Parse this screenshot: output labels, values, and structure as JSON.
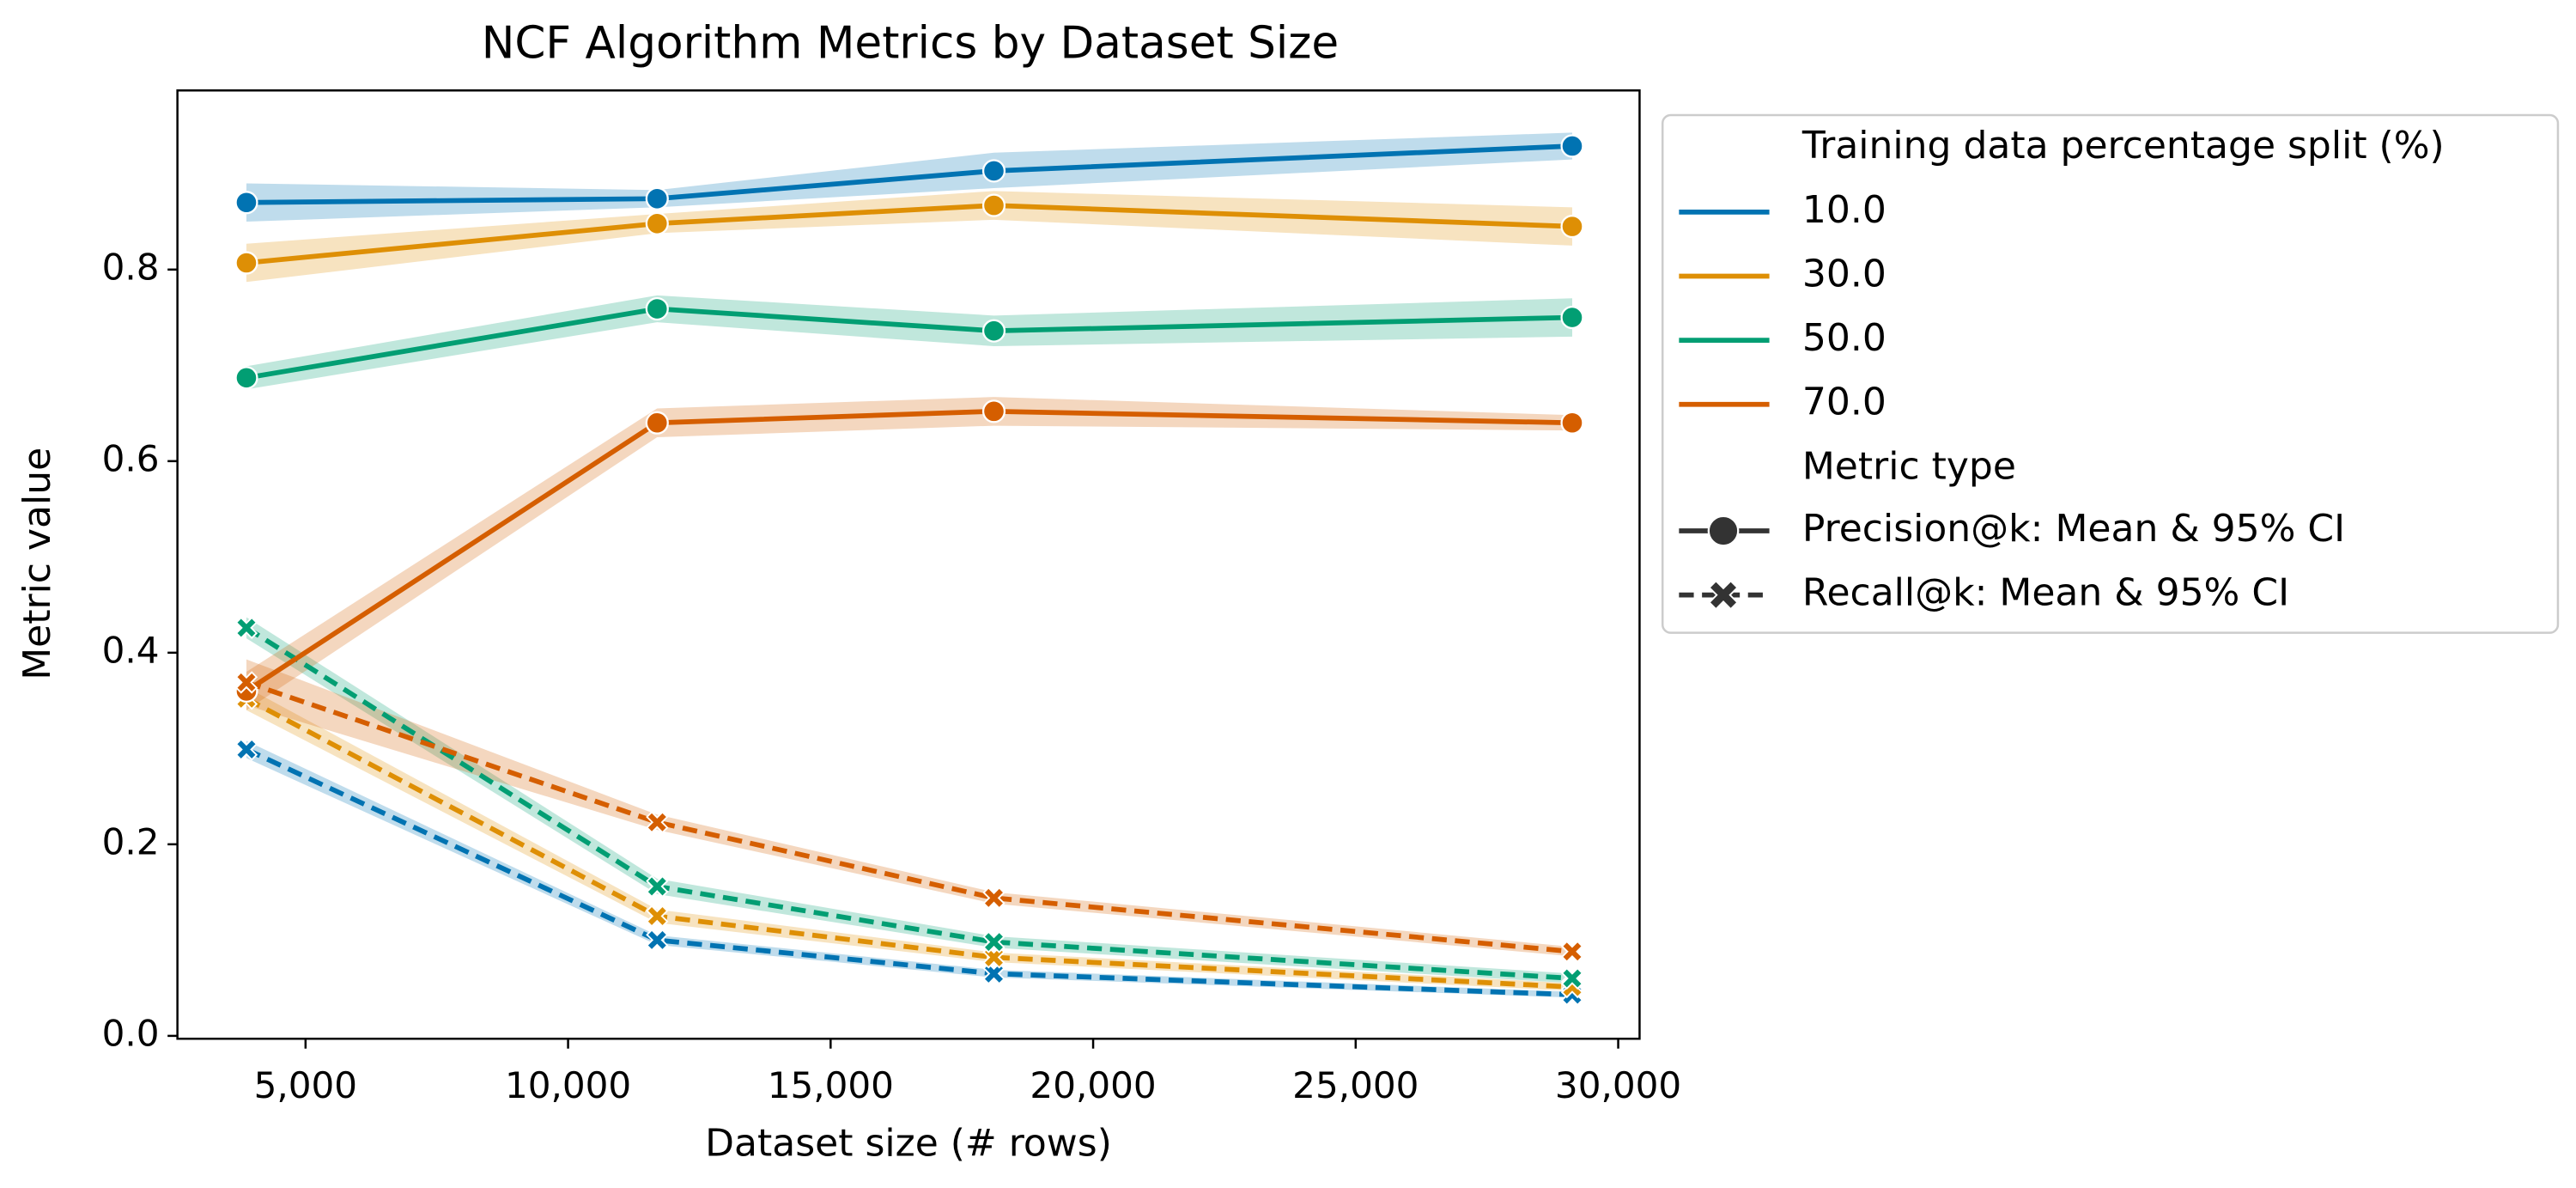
{
  "chart_data": {
    "type": "line",
    "title": "NCF Algorithm Metrics by Dataset Size",
    "xlabel": "Dataset size (# rows)",
    "ylabel": "Metric value",
    "x": [
      3874,
      11696,
      18110,
      29124
    ],
    "xlim": [
      2560,
      30407
    ],
    "xticks": [
      {
        "value": 5000,
        "label": "5,000"
      },
      {
        "value": 10000,
        "label": "10,000"
      },
      {
        "value": 15000,
        "label": "15,000"
      },
      {
        "value": 20000,
        "label": "20,000"
      },
      {
        "value": 25000,
        "label": "25,000"
      },
      {
        "value": 30000,
        "label": "30,000"
      }
    ],
    "ylim": [
      -0.003,
      0.987
    ],
    "yticks": [
      {
        "value": 0,
        "label": "0.0"
      },
      0.2,
      0.4,
      0.6,
      0.8
    ],
    "legend_title": "Training data percentage split (%)",
    "metric_title": "Metric type",
    "metric_types": [
      {
        "name": "Precision@k: Mean & 95% CI",
        "marker": "circle",
        "dash": "solid"
      },
      {
        "name": "Recall@k: Mean & 95% CI",
        "marker": "x",
        "dash": "dashed"
      }
    ],
    "series": [
      {
        "name": "10.0",
        "color": "#0173b2",
        "metrics": [
          {
            "values": [
              0.87,
              0.874,
              0.903,
              0.929
            ],
            "ci_lower": [
              0.85,
              0.865,
              0.885,
              0.915
            ],
            "ci_upper": [
              0.89,
              0.883,
              0.922,
              0.943
            ]
          },
          {
            "values": [
              0.299,
              0.1,
              0.065,
              0.043
            ],
            "ci_lower": [
              0.29,
              0.095,
              0.061,
              0.04
            ],
            "ci_upper": [
              0.308,
              0.105,
              0.069,
              0.046
            ]
          }
        ]
      },
      {
        "name": "30.0",
        "color": "#de8f05",
        "metrics": [
          {
            "values": [
              0.807,
              0.848,
              0.867,
              0.845
            ],
            "ci_lower": [
              0.787,
              0.838,
              0.852,
              0.825
            ],
            "ci_upper": [
              0.827,
              0.858,
              0.882,
              0.865
            ]
          },
          {
            "values": [
              0.352,
              0.125,
              0.082,
              0.051
            ],
            "ci_lower": [
              0.34,
              0.118,
              0.077,
              0.047
            ],
            "ci_upper": [
              0.364,
              0.132,
              0.087,
              0.055
            ]
          }
        ]
      },
      {
        "name": "50.0",
        "color": "#029e73",
        "metrics": [
          {
            "values": [
              0.687,
              0.759,
              0.736,
              0.75
            ],
            "ci_lower": [
              0.675,
              0.745,
              0.72,
              0.73
            ],
            "ci_upper": [
              0.699,
              0.773,
              0.752,
              0.77
            ]
          },
          {
            "values": [
              0.426,
              0.156,
              0.098,
              0.06
            ],
            "ci_lower": [
              0.415,
              0.148,
              0.092,
              0.055
            ],
            "ci_upper": [
              0.437,
              0.164,
              0.104,
              0.065
            ]
          }
        ]
      },
      {
        "name": "70.0",
        "color": "#d55e00",
        "metrics": [
          {
            "values": [
              0.36,
              0.64,
              0.652,
              0.64
            ],
            "ci_lower": [
              0.34,
              0.625,
              0.637,
              0.632
            ],
            "ci_upper": [
              0.38,
              0.655,
              0.667,
              0.648
            ]
          },
          {
            "values": [
              0.369,
              0.223,
              0.144,
              0.088
            ],
            "ci_lower": [
              0.345,
              0.215,
              0.138,
              0.083
            ],
            "ci_upper": [
              0.393,
              0.231,
              0.15,
              0.093
            ]
          }
        ]
      }
    ]
  }
}
